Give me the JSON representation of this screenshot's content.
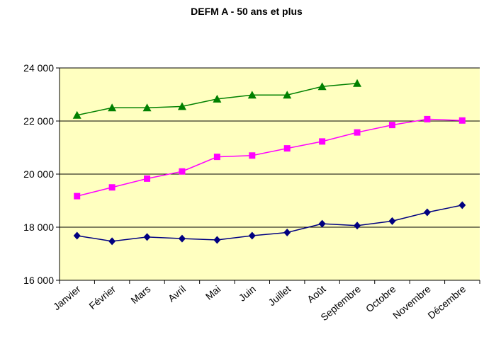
{
  "chart_data": {
    "type": "line",
    "title": "DEFM A - 50 ans et plus",
    "xlabel": "",
    "ylabel": "",
    "categories": [
      "Janvier",
      "Février",
      "Mars",
      "Avril",
      "Mai",
      "Juin",
      "Juillet",
      "Août",
      "Septembre",
      "Octobre",
      "Novembre",
      "Décembre"
    ],
    "ylim": [
      16000,
      24000
    ],
    "yticks": [
      16000,
      18000,
      20000,
      22000,
      24000
    ],
    "ytick_labels": [
      "16 000",
      "18 000",
      "20 000",
      "22 000",
      "24 000"
    ],
    "grid": true,
    "legend": "none",
    "plot_background": "#FFFFC0",
    "series": [
      {
        "color": "#000080",
        "marker": "diamond",
        "values": [
          17680,
          17470,
          17630,
          17570,
          17520,
          17680,
          17800,
          18130,
          18060,
          18230,
          18560,
          18830
        ]
      },
      {
        "color": "#FF00FF",
        "marker": "square",
        "values": [
          19170,
          19500,
          19830,
          20100,
          20650,
          20700,
          20970,
          21230,
          21570,
          21850,
          22070,
          22020
        ]
      },
      {
        "color": "#008000",
        "marker": "triangle",
        "values": [
          22220,
          22500,
          22500,
          22550,
          22830,
          22980,
          22980,
          23300,
          23420,
          null,
          null,
          null
        ]
      }
    ]
  }
}
